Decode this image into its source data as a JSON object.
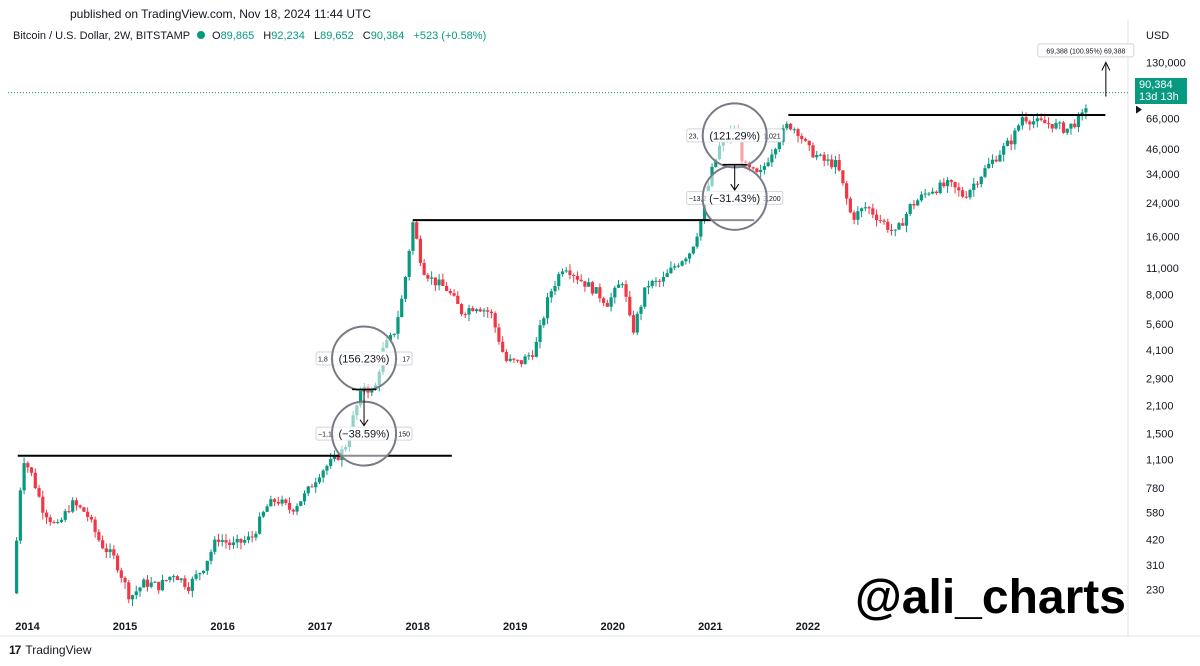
{
  "header": {
    "published": "published on TradingView.com, Nov 18, 2024 11:44 UTC",
    "symbol": "Bitcoin / U.S. Dollar, 2W, BITSTAMP",
    "open_label": "O",
    "open": "89,865",
    "high_label": "H",
    "high": "92,234",
    "low_label": "L",
    "low": "89,652",
    "close_label": "C",
    "close": "90,384",
    "change": "+523 (+0.58%)",
    "currency": "USD"
  },
  "price_tag": {
    "price": "90,384",
    "countdown": "13d 13h"
  },
  "footer": {
    "brand": "TradingView",
    "watermark": "@ali_charts"
  },
  "colors": {
    "up": "#089981",
    "down": "#F23645",
    "line": "#000000",
    "grid": "#E0E3EB",
    "circle": "#787B86"
  },
  "chart_data": {
    "type": "candlestick",
    "y_scale": "log",
    "ylim": [
      180,
      170000
    ],
    "y_ticks": [
      "130,000",
      "66,000",
      "46,000",
      "34,000",
      "24,000",
      "16,000",
      "11,000",
      "8,000",
      "5,600",
      "4,100",
      "2,900",
      "2,100",
      "1,500",
      "1,100",
      "780",
      "580",
      "420",
      "310",
      "230"
    ],
    "y_tick_values": [
      130000,
      66000,
      46000,
      34000,
      24000,
      16000,
      11000,
      8000,
      5600,
      4100,
      2900,
      2100,
      1500,
      1100,
      780,
      580,
      420,
      310,
      230
    ],
    "x_ticks": [
      "2014",
      "2015",
      "2016",
      "2017",
      "2018",
      "2019",
      "2020",
      "2021",
      "2022"
    ],
    "x_tick_values": [
      2014.0,
      2015.0,
      2016.0,
      2017.0,
      2018.0,
      2019.0,
      2020.0,
      2021.0,
      2022.0
    ],
    "xlim": [
      2013.8,
      2025.2
    ],
    "last_price": 90384,
    "price_path": [
      [
        2013.85,
        220
      ],
      [
        2013.95,
        1150
      ],
      [
        2014.05,
        900
      ],
      [
        2014.15,
        620
      ],
      [
        2014.3,
        480
      ],
      [
        2014.45,
        650
      ],
      [
        2014.6,
        580
      ],
      [
        2014.75,
        400
      ],
      [
        2014.9,
        330
      ],
      [
        2015.05,
        210
      ],
      [
        2015.2,
        250
      ],
      [
        2015.35,
        240
      ],
      [
        2015.5,
        280
      ],
      [
        2015.65,
        240
      ],
      [
        2015.8,
        300
      ],
      [
        2015.95,
        430
      ],
      [
        2016.1,
        390
      ],
      [
        2016.3,
        430
      ],
      [
        2016.45,
        620
      ],
      [
        2016.55,
        680
      ],
      [
        2016.7,
        600
      ],
      [
        2016.85,
        720
      ],
      [
        2017.0,
        950
      ],
      [
        2017.15,
        1100
      ],
      [
        2017.25,
        1250
      ],
      [
        2017.35,
        1900
      ],
      [
        2017.45,
        2700
      ],
      [
        2017.55,
        2400
      ],
      [
        2017.65,
        4200
      ],
      [
        2017.75,
        4900
      ],
      [
        2017.85,
        8000
      ],
      [
        2017.95,
        19000
      ],
      [
        2018.05,
        11000
      ],
      [
        2018.15,
        9500
      ],
      [
        2018.3,
        8500
      ],
      [
        2018.45,
        6500
      ],
      [
        2018.6,
        7000
      ],
      [
        2018.75,
        6400
      ],
      [
        2018.9,
        3600
      ],
      [
        2019.05,
        3500
      ],
      [
        2019.2,
        4100
      ],
      [
        2019.35,
        8000
      ],
      [
        2019.5,
        11500
      ],
      [
        2019.65,
        9700
      ],
      [
        2019.8,
        8500
      ],
      [
        2019.95,
        7200
      ],
      [
        2020.1,
        9500
      ],
      [
        2020.2,
        5000
      ],
      [
        2020.35,
        9000
      ],
      [
        2020.5,
        9300
      ],
      [
        2020.65,
        11500
      ],
      [
        2020.8,
        13500
      ],
      [
        2020.9,
        19000
      ],
      [
        2021.0,
        33000
      ],
      [
        2021.1,
        48000
      ],
      [
        2021.25,
        58000
      ],
      [
        2021.35,
        37000
      ],
      [
        2021.5,
        33000
      ],
      [
        2021.65,
        47000
      ],
      [
        2021.8,
        62000
      ],
      [
        2021.9,
        57000
      ],
      [
        2022.0,
        46000
      ],
      [
        2022.15,
        40000
      ],
      [
        2022.3,
        38000
      ],
      [
        2022.45,
        20000
      ],
      [
        2022.6,
        23000
      ],
      [
        2022.75,
        19500
      ],
      [
        2022.9,
        16500
      ],
      [
        2023.05,
        23000
      ],
      [
        2023.25,
        28000
      ],
      [
        2023.45,
        30000
      ],
      [
        2023.6,
        26000
      ],
      [
        2023.8,
        35000
      ],
      [
        2023.95,
        43000
      ],
      [
        2024.1,
        52000
      ],
      [
        2024.2,
        68000
      ],
      [
        2024.35,
        63000
      ],
      [
        2024.5,
        62000
      ],
      [
        2024.65,
        58000
      ],
      [
        2024.75,
        64000
      ],
      [
        2024.83,
        69000
      ],
      [
        2024.88,
        90384
      ]
    ],
    "horizontal_levels": [
      {
        "price": 1150,
        "x_start": 2013.9,
        "x_end": 2018.35
      },
      {
        "price": 19500,
        "x_start": 2017.95,
        "x_end": 2021.45
      },
      {
        "price": 69000,
        "x_start": 2021.8,
        "x_end": 2025.05
      }
    ],
    "annotations": [
      {
        "label": "(−38.59%)",
        "left_fragment": "−1,1",
        "right_fragment": "150",
        "price": 1500,
        "x": 2017.45
      },
      {
        "label": "(156.23%)",
        "left_fragment": "1,8",
        "right_fragment": "17",
        "price": 3700,
        "x": 2017.45
      },
      {
        "label": "(−31.43%)",
        "left_fragment": "−13,2",
        "right_fragment": "3,200",
        "price": 25500,
        "x": 2021.25
      },
      {
        "label": "(121.29%)",
        "left_fragment": "23,",
        "right_fragment": "1,021",
        "price": 54000,
        "x": 2021.25
      },
      {
        "label": "69,388 (100.95%) 69,388",
        "price": 150000,
        "x": 2024.85
      }
    ]
  }
}
